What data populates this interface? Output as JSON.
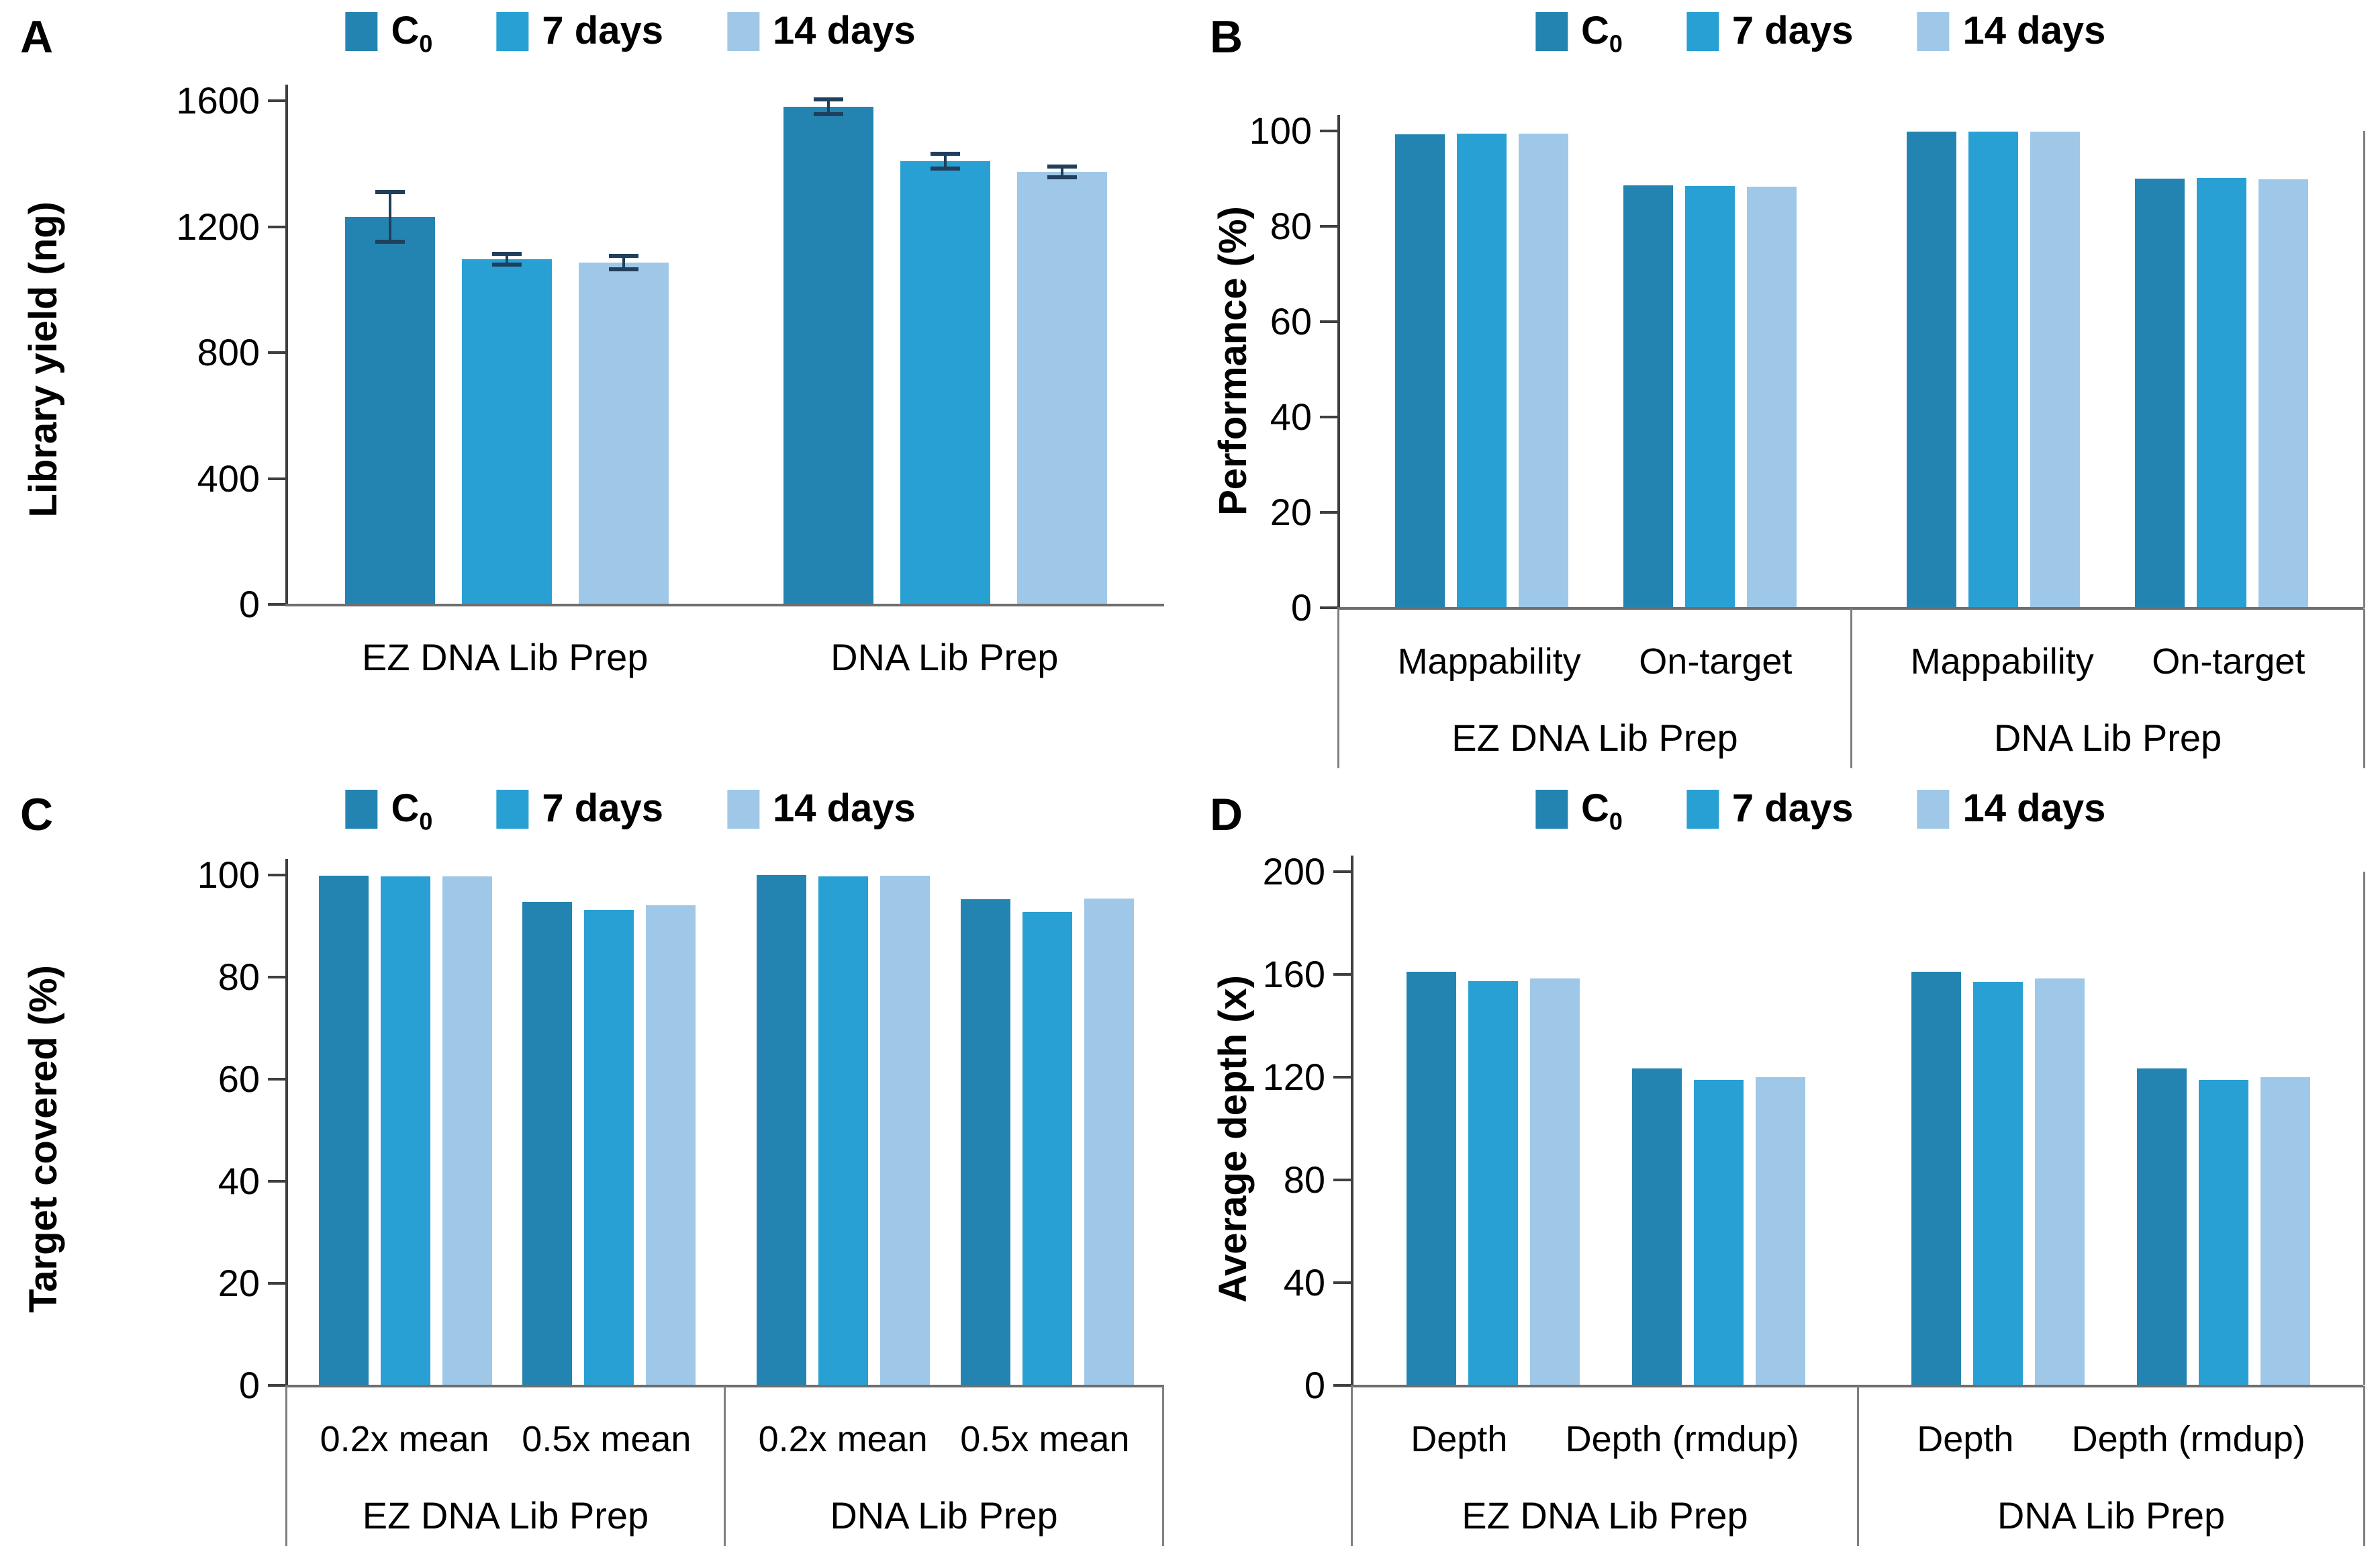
{
  "colors": {
    "c0": "#2484B1",
    "days7": "#29A0D3",
    "days14": "#9FC8E8",
    "axis": "#3F3F3F",
    "baseline": "#6E6E6E",
    "box_border": "#7F7F7F",
    "error_bar": "#1F3F5C"
  },
  "legend": {
    "items": [
      {
        "label": "C",
        "sub": "0",
        "color": "c0"
      },
      {
        "label": "7 days",
        "sub": "",
        "color": "days7"
      },
      {
        "label": "14 days",
        "sub": "",
        "color": "days14"
      }
    ]
  },
  "chart_data": [
    {
      "id": "A",
      "panel_label": "A",
      "type": "bar",
      "ylabel": "Library yield (ng)",
      "ylim": [
        0,
        1600
      ],
      "yticks": [
        0,
        400,
        800,
        1200,
        1600
      ],
      "series": [
        "C0",
        "7 days",
        "14 days"
      ],
      "xaxis_style": "plain",
      "groups": [
        {
          "label": "EZ DNA Lib Prep",
          "categories": [
            {
              "label": "",
              "values": [
                1230,
                1096,
                1085
              ],
              "errors": [
                80,
                18,
                22
              ]
            }
          ]
        },
        {
          "label": "DNA Lib Prep",
          "categories": [
            {
              "label": "",
              "values": [
                1580,
                1407,
                1373
              ],
              "errors": [
                25,
                25,
                18
              ]
            }
          ]
        }
      ]
    },
    {
      "id": "B",
      "panel_label": "B",
      "type": "bar",
      "ylabel": "Performance (%)",
      "ylim": [
        0,
        100
      ],
      "yticks": [
        0,
        20,
        40,
        60,
        80,
        100
      ],
      "series": [
        "C0",
        "7 days",
        "14 days"
      ],
      "xaxis_style": "boxed",
      "groups": [
        {
          "label": "EZ DNA Lib Prep",
          "categories": [
            {
              "label": "Mappability",
              "values": [
                99.3,
                99.5,
                99.4
              ]
            },
            {
              "label": "On-target",
              "values": [
                88.6,
                88.4,
                88.3
              ]
            }
          ]
        },
        {
          "label": "DNA Lib Prep",
          "categories": [
            {
              "label": "Mappability",
              "values": [
                99.8,
                99.9,
                99.8
              ]
            },
            {
              "label": "On-target",
              "values": [
                90.0,
                90.1,
                89.9
              ]
            }
          ]
        }
      ]
    },
    {
      "id": "C",
      "panel_label": "C",
      "type": "bar",
      "ylabel": "Target covered (%)",
      "ylim": [
        0,
        100
      ],
      "yticks": [
        0,
        20,
        40,
        60,
        80,
        100
      ],
      "series": [
        "C0",
        "7 days",
        "14 days"
      ],
      "xaxis_style": "boxed",
      "groups": [
        {
          "label": "EZ DNA Lib Prep",
          "categories": [
            {
              "label": "0.2x mean",
              "values": [
                99.9,
                99.8,
                99.8
              ]
            },
            {
              "label": "0.5x mean",
              "values": [
                94.7,
                93.2,
                94.1
              ]
            }
          ]
        },
        {
          "label": "DNA Lib Prep",
          "categories": [
            {
              "label": "0.2x mean",
              "values": [
                100,
                99.7,
                99.9
              ]
            },
            {
              "label": "0.5x mean",
              "values": [
                95.2,
                92.7,
                95.4
              ]
            }
          ]
        }
      ]
    },
    {
      "id": "D",
      "panel_label": "D",
      "type": "bar",
      "ylabel": "Average depth (x)",
      "ylim": [
        0,
        200
      ],
      "yticks": [
        0,
        40,
        80,
        120,
        160,
        200
      ],
      "series": [
        "C0",
        "7 days",
        "14 days"
      ],
      "xaxis_style": "boxed",
      "groups": [
        {
          "label": "EZ DNA Lib Prep",
          "categories": [
            {
              "label": "Depth",
              "values": [
                161,
                157.5,
                158.5
              ]
            },
            {
              "label": "Depth (rmdup)",
              "values": [
                123.5,
                119,
                120
              ]
            }
          ]
        },
        {
          "label": "DNA Lib Prep",
          "categories": [
            {
              "label": "Depth",
              "values": [
                161,
                157,
                158.5
              ]
            },
            {
              "label": "Depth (rmdup)",
              "values": [
                123.5,
                119,
                120
              ]
            }
          ]
        }
      ]
    }
  ]
}
